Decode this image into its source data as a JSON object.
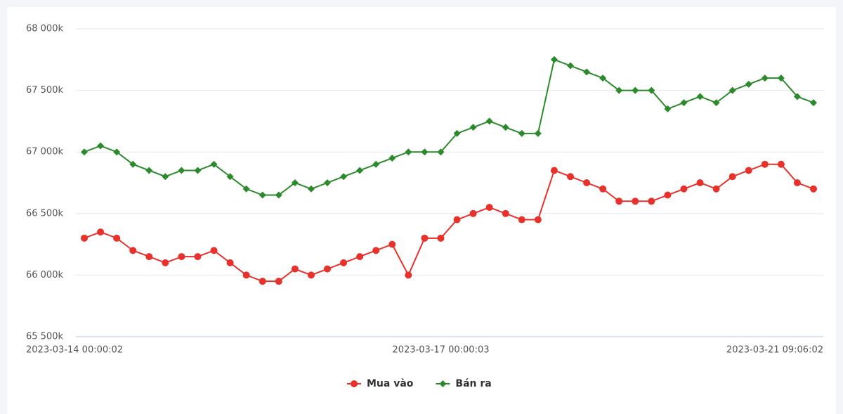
{
  "chart_data": {
    "type": "line",
    "categories": [
      "2023-03-14 00:00:02",
      null,
      null,
      null,
      null,
      null,
      null,
      null,
      null,
      null,
      null,
      null,
      null,
      null,
      null,
      null,
      null,
      null,
      null,
      null,
      null,
      null,
      "2023-03-17 00:00:03",
      null,
      null,
      null,
      null,
      null,
      null,
      null,
      null,
      null,
      null,
      null,
      null,
      null,
      null,
      null,
      null,
      null,
      null,
      null,
      null,
      null,
      null,
      "2023-03-21 09:06:02"
    ],
    "series": [
      {
        "name": "Mua vào",
        "color": "#e8312a",
        "marker": "circle",
        "values": [
          66300,
          66350,
          66300,
          66200,
          66150,
          66100,
          66150,
          66150,
          66200,
          66100,
          66000,
          65950,
          65950,
          66050,
          66000,
          66050,
          66100,
          66150,
          66200,
          66250,
          66000,
          66300,
          66300,
          66450,
          66500,
          66550,
          66500,
          66450,
          66450,
          66850,
          66800,
          66750,
          66700,
          66600,
          66600,
          66600,
          66650,
          66700,
          66750,
          66700,
          66800,
          66850,
          66900,
          66900,
          66750,
          66700
        ]
      },
      {
        "name": "Bán ra",
        "color": "#2b8a2b",
        "marker": "diamond",
        "values": [
          67000,
          67050,
          67000,
          66900,
          66850,
          66800,
          66850,
          66850,
          66900,
          66800,
          66700,
          66650,
          66650,
          66750,
          66700,
          66750,
          66800,
          66850,
          66900,
          66950,
          67000,
          67000,
          67000,
          67150,
          67200,
          67250,
          67200,
          67150,
          67150,
          67750,
          67700,
          67650,
          67600,
          67500,
          67500,
          67500,
          67350,
          67400,
          67450,
          67400,
          67500,
          67550,
          67600,
          67600,
          67450,
          67400
        ]
      }
    ],
    "ylim": [
      65500,
      68000
    ],
    "yticks": [
      {
        "value": 65500,
        "label": "65 500k"
      },
      {
        "value": 66000,
        "label": "66 000k"
      },
      {
        "value": 66500,
        "label": "66 500k"
      },
      {
        "value": 67000,
        "label": "67 000k"
      },
      {
        "value": 67500,
        "label": "67 500k"
      },
      {
        "value": 68000,
        "label": "68 000k"
      }
    ],
    "grid": true
  }
}
